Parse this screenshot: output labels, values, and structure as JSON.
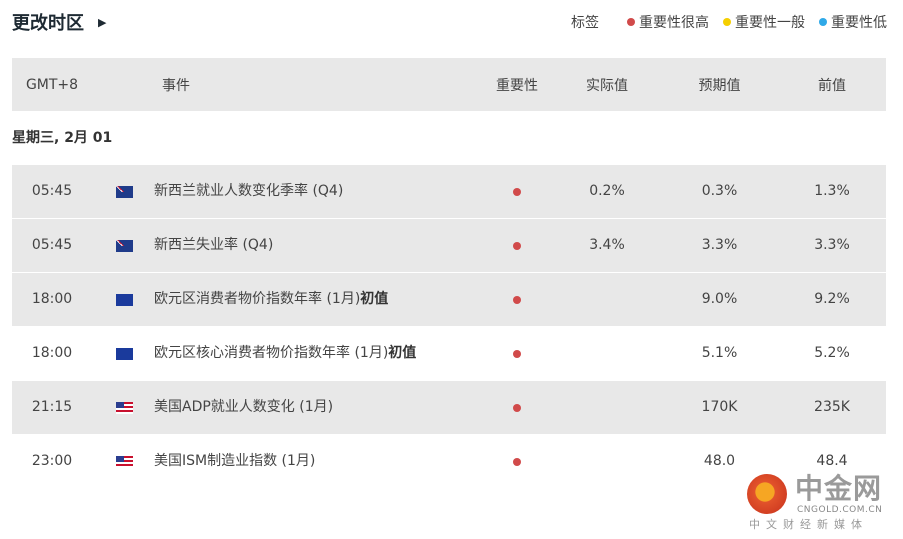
{
  "header": {
    "title": "更改时区",
    "legend_label": "标签",
    "legend": [
      {
        "label": "重要性很高",
        "color": "#d14a4a"
      },
      {
        "label": "重要性一般",
        "color": "#f5cf00"
      },
      {
        "label": "重要性低",
        "color": "#2fa9e8"
      }
    ]
  },
  "table": {
    "columns": [
      "GMT+8",
      "事件",
      "重要性",
      "实际值",
      "预期值",
      "前值"
    ],
    "date": "星期三, 2月 01",
    "rows": [
      {
        "time": "05:45",
        "flag": "nz",
        "event": "新西兰就业人数变化季率 (Q4)",
        "event_bold": "",
        "importance": "high",
        "actual": "0.2%",
        "forecast": "0.3%",
        "previous": "1.3%"
      },
      {
        "time": "05:45",
        "flag": "nz",
        "event": "新西兰失业率 (Q4)",
        "event_bold": "",
        "importance": "high",
        "actual": "3.4%",
        "forecast": "3.3%",
        "previous": "3.3%"
      },
      {
        "time": "18:00",
        "flag": "eu",
        "event": "欧元区消费者物价指数年率 (1月)",
        "event_bold": "初值",
        "importance": "high",
        "actual": "",
        "forecast": "9.0%",
        "previous": "9.2%"
      },
      {
        "time": "18:00",
        "flag": "eu",
        "event": "欧元区核心消费者物价指数年率 (1月)",
        "event_bold": "初值",
        "importance": "high",
        "actual": "",
        "forecast": "5.1%",
        "previous": "5.2%"
      },
      {
        "time": "21:15",
        "flag": "us",
        "event": "美国ADP就业人数变化 (1月)",
        "event_bold": "",
        "importance": "high",
        "actual": "",
        "forecast": "170K",
        "previous": "235K"
      },
      {
        "time": "23:00",
        "flag": "us",
        "event": "美国ISM制造业指数 (1月)",
        "event_bold": "",
        "importance": "high",
        "actual": "",
        "forecast": "48.0",
        "previous": "48.4"
      }
    ]
  },
  "watermark": {
    "name": "中金网",
    "domain": "CNGOLD.COM.CN",
    "tagline": "中文财经新媒体"
  }
}
